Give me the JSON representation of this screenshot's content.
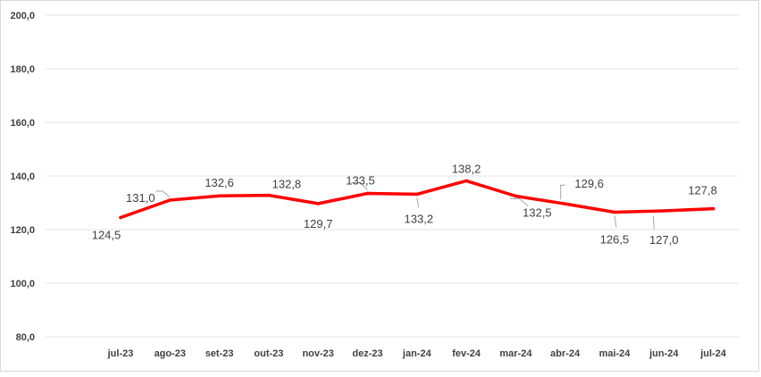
{
  "chart_data": {
    "type": "line",
    "categories": [
      "jul-23",
      "ago-23",
      "set-23",
      "out-23",
      "nov-23",
      "dez-23",
      "jan-24",
      "fev-24",
      "mar-24",
      "abr-24",
      "mai-24",
      "jun-24",
      "jul-24"
    ],
    "series": [
      {
        "values": [
          124.5,
          131.0,
          132.6,
          132.8,
          129.7,
          133.5,
          133.2,
          138.2,
          132.5,
          129.6,
          126.5,
          127.0,
          127.8
        ],
        "color": "#ff0000"
      }
    ],
    "data_labels": [
      "124,5",
      "131,0",
      "132,6",
      "132,8",
      "129,7",
      "133,5",
      "133,2",
      "138,2",
      "132,5",
      "129,6",
      "126,5",
      "127,0",
      "127,8"
    ],
    "y_ticks": [
      "80,0",
      "100,0",
      "120,0",
      "140,0",
      "160,0",
      "180,0",
      "200,0"
    ],
    "ylim": [
      80,
      200
    ],
    "grid": true,
    "legend": "none",
    "title": "",
    "xlabel": "",
    "ylabel": ""
  }
}
